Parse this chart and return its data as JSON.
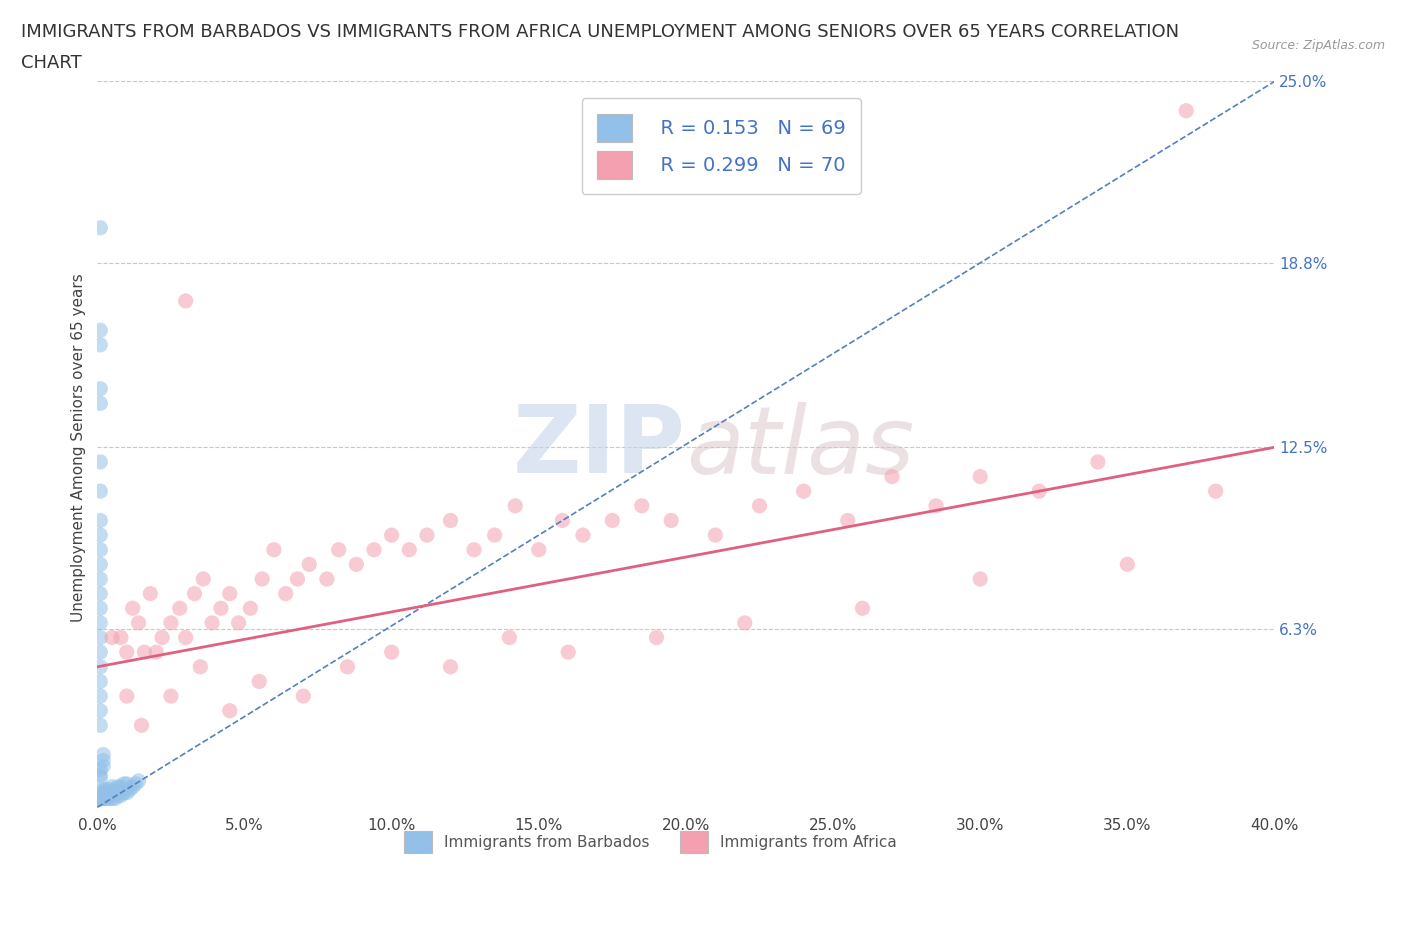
{
  "title_line1": "IMMIGRANTS FROM BARBADOS VS IMMIGRANTS FROM AFRICA UNEMPLOYMENT AMONG SENIORS OVER 65 YEARS CORRELATION",
  "title_line2": "CHART",
  "source": "Source: ZipAtlas.com",
  "ylabel": "Unemployment Among Seniors over 65 years",
  "xlim": [
    0.0,
    0.4
  ],
  "ylim": [
    0.0,
    0.25
  ],
  "xticks": [
    0.0,
    0.05,
    0.1,
    0.15,
    0.2,
    0.25,
    0.3,
    0.35,
    0.4
  ],
  "yticks_right": [
    0.063,
    0.125,
    0.188,
    0.25
  ],
  "yticks_right_labels": [
    "6.3%",
    "12.5%",
    "18.8%",
    "25.0%"
  ],
  "xtick_labels": [
    "0.0%",
    "5.0%",
    "10.0%",
    "15.0%",
    "20.0%",
    "25.0%",
    "30.0%",
    "35.0%",
    "40.0%"
  ],
  "color_barbados": "#92c0e8",
  "color_africa": "#f4a0b0",
  "color_trend_barbados": "#5580bb",
  "color_trend_africa": "#e06080",
  "legend_label_barbados": "Immigrants from Barbados",
  "legend_label_africa": "Immigrants from Africa",
  "R_barbados": 0.153,
  "N_barbados": 69,
  "R_africa": 0.299,
  "N_africa": 70,
  "watermark_zip": "ZIP",
  "watermark_atlas": "atlas",
  "background_color": "#ffffff",
  "axis_color": "#4472c4",
  "title_fontsize": 13,
  "barbados_x": [
    0.001,
    0.001,
    0.001,
    0.001,
    0.001,
    0.001,
    0.002,
    0.002,
    0.002,
    0.002,
    0.002,
    0.003,
    0.003,
    0.003,
    0.003,
    0.004,
    0.004,
    0.004,
    0.005,
    0.005,
    0.005,
    0.006,
    0.006,
    0.007,
    0.007,
    0.008,
    0.008,
    0.009,
    0.009,
    0.01,
    0.01,
    0.011,
    0.012,
    0.013,
    0.014,
    0.001,
    0.001,
    0.001,
    0.002,
    0.002,
    0.002,
    0.001,
    0.001,
    0.001,
    0.001,
    0.001,
    0.001,
    0.001,
    0.001,
    0.001,
    0.001,
    0.001,
    0.001,
    0.001,
    0.001,
    0.001,
    0.001,
    0.001,
    0.001,
    0.001,
    0.001,
    0.001,
    0.001,
    0.001,
    0.001,
    0.001,
    0.001,
    0.001,
    0.001
  ],
  "barbados_y": [
    0.005,
    0.005,
    0.005,
    0.005,
    0.006,
    0.007,
    0.005,
    0.005,
    0.006,
    0.007,
    0.008,
    0.005,
    0.006,
    0.007,
    0.008,
    0.005,
    0.006,
    0.008,
    0.005,
    0.007,
    0.009,
    0.005,
    0.008,
    0.006,
    0.009,
    0.006,
    0.009,
    0.007,
    0.01,
    0.007,
    0.01,
    0.008,
    0.009,
    0.01,
    0.011,
    0.012,
    0.013,
    0.015,
    0.016,
    0.018,
    0.02,
    0.03,
    0.035,
    0.04,
    0.045,
    0.05,
    0.055,
    0.06,
    0.065,
    0.07,
    0.075,
    0.08,
    0.085,
    0.09,
    0.095,
    0.1,
    0.11,
    0.12,
    0.14,
    0.16,
    0.005,
    0.005,
    0.006,
    0.005,
    0.005,
    0.005,
    0.2,
    0.165,
    0.145
  ],
  "africa_x": [
    0.005,
    0.008,
    0.01,
    0.012,
    0.014,
    0.016,
    0.018,
    0.02,
    0.022,
    0.025,
    0.028,
    0.03,
    0.033,
    0.036,
    0.039,
    0.042,
    0.045,
    0.048,
    0.052,
    0.056,
    0.06,
    0.064,
    0.068,
    0.072,
    0.078,
    0.082,
    0.088,
    0.094,
    0.1,
    0.106,
    0.112,
    0.12,
    0.128,
    0.135,
    0.142,
    0.15,
    0.158,
    0.165,
    0.175,
    0.185,
    0.195,
    0.21,
    0.225,
    0.24,
    0.255,
    0.27,
    0.285,
    0.3,
    0.32,
    0.34,
    0.01,
    0.015,
    0.025,
    0.035,
    0.045,
    0.055,
    0.07,
    0.085,
    0.1,
    0.12,
    0.14,
    0.16,
    0.19,
    0.22,
    0.26,
    0.3,
    0.35,
    0.38,
    0.03,
    0.37
  ],
  "africa_y": [
    0.06,
    0.06,
    0.055,
    0.07,
    0.065,
    0.055,
    0.075,
    0.055,
    0.06,
    0.065,
    0.07,
    0.06,
    0.075,
    0.08,
    0.065,
    0.07,
    0.075,
    0.065,
    0.07,
    0.08,
    0.09,
    0.075,
    0.08,
    0.085,
    0.08,
    0.09,
    0.085,
    0.09,
    0.095,
    0.09,
    0.095,
    0.1,
    0.09,
    0.095,
    0.105,
    0.09,
    0.1,
    0.095,
    0.1,
    0.105,
    0.1,
    0.095,
    0.105,
    0.11,
    0.1,
    0.115,
    0.105,
    0.115,
    0.11,
    0.12,
    0.04,
    0.03,
    0.04,
    0.05,
    0.035,
    0.045,
    0.04,
    0.05,
    0.055,
    0.05,
    0.06,
    0.055,
    0.06,
    0.065,
    0.07,
    0.08,
    0.085,
    0.11,
    0.175,
    0.24
  ],
  "trend_barbados_x0": 0.0,
  "trend_barbados_x1": 0.4,
  "trend_barbados_y0": 0.002,
  "trend_barbados_y1": 0.25,
  "trend_africa_x0": 0.0,
  "trend_africa_x1": 0.4,
  "trend_africa_y0": 0.05,
  "trend_africa_y1": 0.125
}
